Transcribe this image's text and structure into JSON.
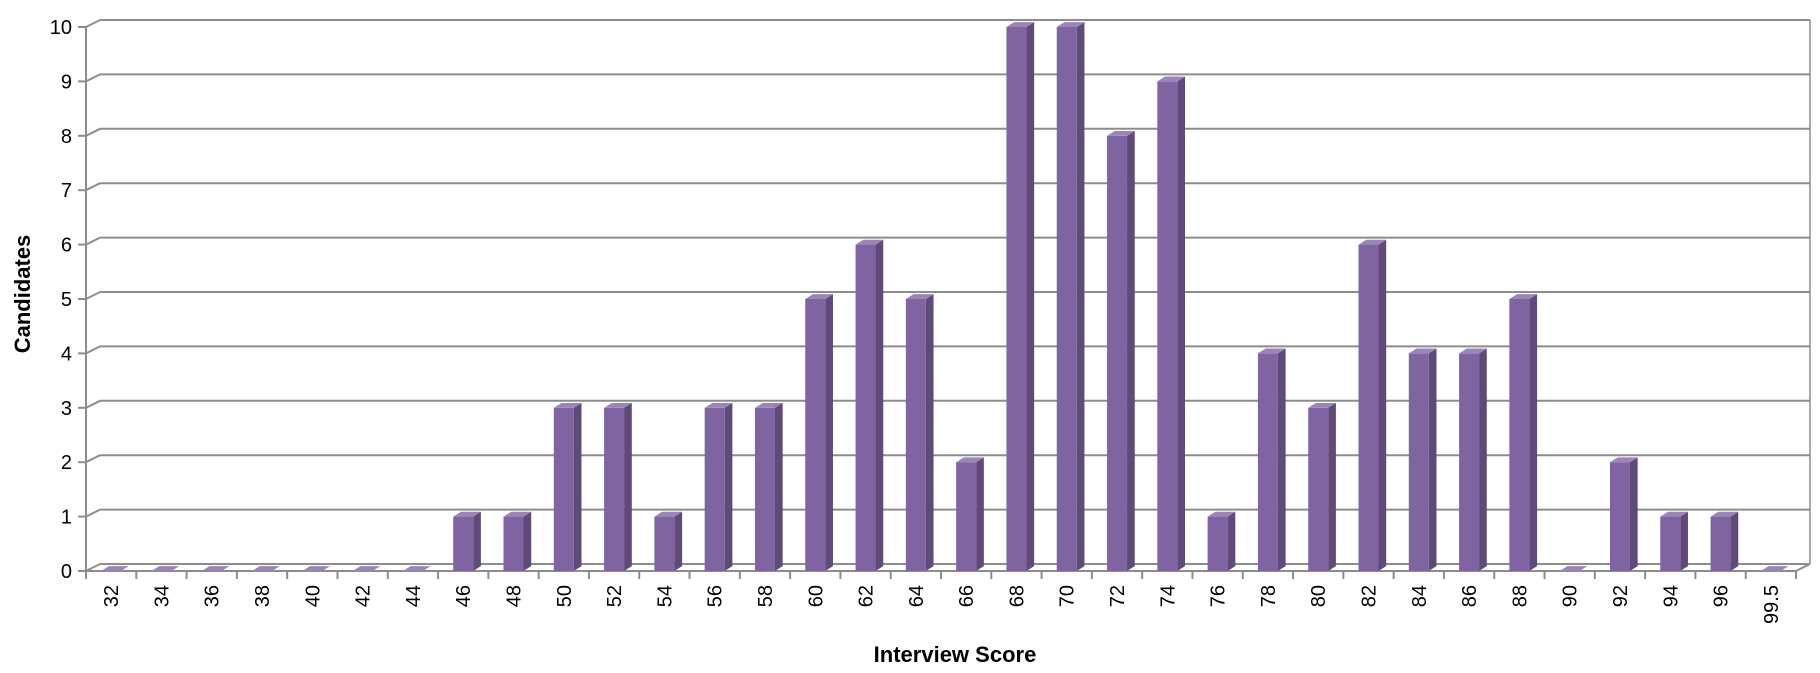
{
  "chart_data": {
    "type": "bar",
    "title": "",
    "xlabel": "Interview Score",
    "ylabel": "Candidates",
    "categories": [
      "32",
      "34",
      "36",
      "38",
      "40",
      "42",
      "44",
      "46",
      "48",
      "50",
      "52",
      "54",
      "56",
      "58",
      "60",
      "62",
      "64",
      "66",
      "68",
      "70",
      "72",
      "74",
      "76",
      "78",
      "80",
      "82",
      "84",
      "86",
      "88",
      "90",
      "92",
      "94",
      "96",
      "99.5"
    ],
    "values": [
      0,
      0,
      0,
      0,
      0,
      0,
      0,
      1,
      1,
      3,
      3,
      1,
      3,
      3,
      5,
      6,
      5,
      2,
      10,
      10,
      8,
      9,
      1,
      4,
      3,
      6,
      4,
      4,
      5,
      0,
      2,
      1,
      1,
      0
    ],
    "ylim": [
      0,
      10
    ],
    "yticks": [
      0,
      1,
      2,
      3,
      4,
      5,
      6,
      7,
      8,
      9,
      10
    ],
    "grid": true,
    "legend": "none",
    "style": "3d-column",
    "colors": {
      "bar_front": "#8064a2",
      "bar_side": "#5f4a7a",
      "bar_top": "#9b84b8",
      "grid": "#8c8c8c",
      "axis": "#8c8c8c"
    }
  }
}
